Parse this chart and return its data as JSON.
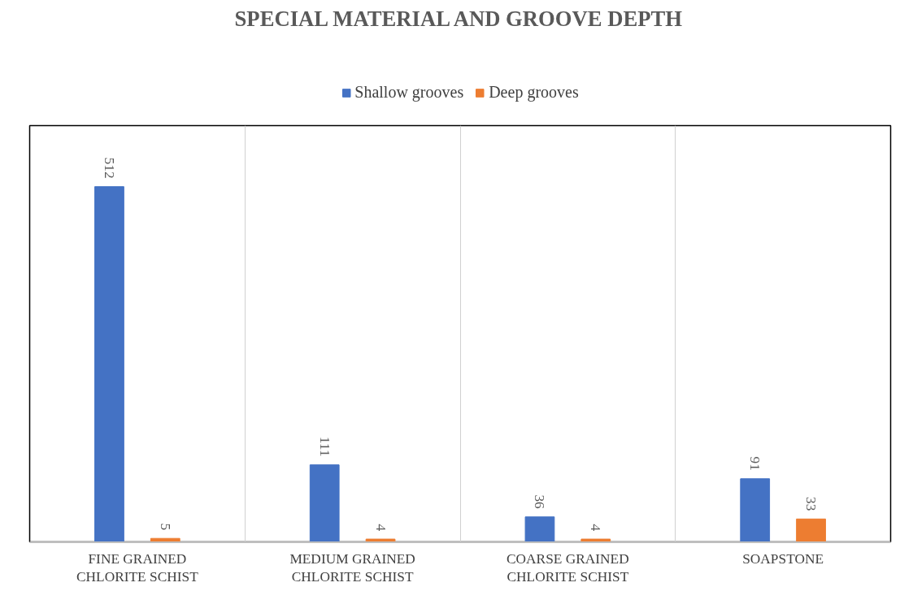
{
  "chart_data": {
    "type": "bar",
    "title": "SPECIAL MATERIAL AND GROOVE DEPTH",
    "categories": [
      "FINE GRAINED CHLORITE SCHIST",
      "MEDIUM GRAINED CHLORITE SCHIST",
      "COARSE GRAINED CHLORITE SCHIST",
      "SOAPSTONE"
    ],
    "series": [
      {
        "name": "Shallow grooves",
        "color": "#4472c4",
        "values": [
          512,
          111,
          36,
          91
        ]
      },
      {
        "name": "Deep grooves",
        "color": "#ed7d31",
        "values": [
          5,
          4,
          4,
          33
        ]
      }
    ],
    "ylim": [
      0,
      600
    ],
    "tick_labels": "x",
    "data_labels": true,
    "grid": "x",
    "legend": "top"
  }
}
